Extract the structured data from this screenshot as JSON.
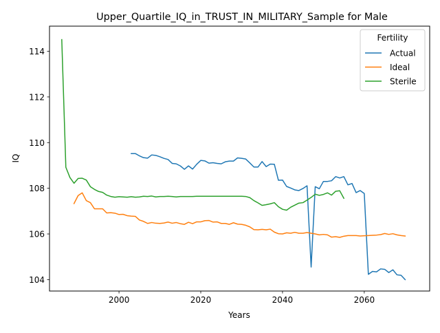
{
  "chart_data": {
    "type": "line",
    "title": "Upper_Quartile_IQ_in_TRUST_IN_MILITARY_Sample for Male",
    "xlabel": "Years",
    "ylabel": "IQ",
    "xlim": [
      1983,
      2076
    ],
    "ylim": [
      103.5,
      115.1
    ],
    "xticks": [
      2000,
      2020,
      2040,
      2060
    ],
    "yticks": [
      104,
      106,
      108,
      110,
      112,
      114
    ],
    "grid": false,
    "legend": {
      "title": "Fertility",
      "placement": "top-right",
      "entries": [
        "Actual",
        "Ideal",
        "Sterile"
      ]
    },
    "series": [
      {
        "name": "Actual",
        "color": "#1f77b4",
        "x": [
          2003,
          2004,
          2005,
          2006,
          2007,
          2008,
          2009,
          2010,
          2011,
          2012,
          2013,
          2014,
          2015,
          2016,
          2017,
          2018,
          2019,
          2020,
          2021,
          2022,
          2023,
          2024,
          2025,
          2026,
          2027,
          2028,
          2029,
          2030,
          2031,
          2032,
          2033,
          2034,
          2035,
          2036,
          2037,
          2038,
          2039,
          2040,
          2041,
          2042,
          2043,
          2044,
          2045,
          2046,
          2047,
          2048,
          2049,
          2050,
          2051,
          2052,
          2053,
          2054,
          2055,
          2056,
          2057,
          2058,
          2059,
          2060,
          2061,
          2062,
          2063,
          2064,
          2065,
          2066,
          2067,
          2068,
          2069,
          2070
        ],
        "y": [
          109.52,
          109.52,
          109.42,
          109.34,
          109.32,
          109.46,
          109.44,
          109.38,
          109.31,
          109.26,
          109.09,
          109.07,
          108.98,
          108.83,
          108.98,
          108.84,
          109.05,
          109.22,
          109.2,
          109.1,
          109.12,
          109.09,
          109.07,
          109.16,
          109.19,
          109.19,
          109.33,
          109.31,
          109.28,
          109.11,
          108.93,
          108.93,
          109.17,
          108.95,
          109.06,
          109.05,
          108.35,
          108.36,
          108.08,
          108.01,
          107.93,
          107.9,
          107.99,
          108.11,
          104.55,
          108.07,
          107.98,
          108.3,
          108.3,
          108.33,
          108.51,
          108.45,
          108.51,
          108.15,
          108.21,
          107.81,
          107.9,
          107.77,
          104.23,
          104.36,
          104.34,
          104.47,
          104.45,
          104.31,
          104.43,
          104.21,
          104.19,
          104.0
        ]
      },
      {
        "name": "Ideal",
        "color": "#ff7f0e",
        "x": [
          1989,
          1990,
          1991,
          1992,
          1993,
          1994,
          1995,
          1996,
          1997,
          1998,
          1999,
          2000,
          2001,
          2002,
          2003,
          2004,
          2005,
          2006,
          2007,
          2008,
          2009,
          2010,
          2011,
          2012,
          2013,
          2014,
          2015,
          2016,
          2017,
          2018,
          2019,
          2020,
          2021,
          2022,
          2023,
          2024,
          2025,
          2026,
          2027,
          2028,
          2029,
          2030,
          2031,
          2032,
          2033,
          2034,
          2035,
          2036,
          2037,
          2038,
          2039,
          2040,
          2041,
          2042,
          2043,
          2044,
          2045,
          2046,
          2047,
          2048,
          2049,
          2050,
          2051,
          2052,
          2053,
          2054,
          2055,
          2056,
          2057,
          2058,
          2059,
          2060,
          2061,
          2062,
          2063,
          2064,
          2065,
          2066,
          2067,
          2068,
          2069,
          2070
        ],
        "y": [
          107.33,
          107.68,
          107.8,
          107.46,
          107.37,
          107.1,
          107.1,
          107.1,
          106.92,
          106.93,
          106.91,
          106.85,
          106.86,
          106.8,
          106.78,
          106.77,
          106.61,
          106.55,
          106.46,
          106.5,
          106.47,
          106.46,
          106.48,
          106.52,
          106.47,
          106.5,
          106.45,
          106.42,
          106.51,
          106.45,
          106.53,
          106.53,
          106.58,
          106.59,
          106.52,
          106.53,
          106.46,
          106.46,
          106.42,
          106.49,
          106.43,
          106.42,
          106.38,
          106.31,
          106.19,
          106.18,
          106.2,
          106.18,
          106.21,
          106.08,
          106.01,
          106.0,
          106.05,
          106.03,
          106.07,
          106.03,
          106.03,
          106.06,
          106.03,
          106.0,
          105.96,
          105.98,
          105.96,
          105.86,
          105.88,
          105.85,
          105.9,
          105.93,
          105.93,
          105.93,
          105.91,
          105.92,
          105.93,
          105.94,
          105.95,
          105.97,
          106.02,
          105.98,
          106.01,
          105.96,
          105.93,
          105.91
        ]
      },
      {
        "name": "Sterile",
        "color": "#2ca02c",
        "x": [
          1986,
          1987,
          1988,
          1989,
          1990,
          1991,
          1992,
          1993,
          1994,
          1995,
          1996,
          1997,
          1998,
          1999,
          2000,
          2001,
          2002,
          2003,
          2004,
          2005,
          2006,
          2007,
          2008,
          2009,
          2010,
          2011,
          2012,
          2013,
          2014,
          2015,
          2016,
          2017,
          2018,
          2019,
          2020,
          2021,
          2022,
          2023,
          2024,
          2025,
          2026,
          2027,
          2028,
          2029,
          2030,
          2031,
          2032,
          2033,
          2034,
          2035,
          2036,
          2037,
          2038,
          2039,
          2040,
          2041,
          2042,
          2043,
          2044,
          2045,
          2046,
          2047,
          2048,
          2049,
          2050,
          2051,
          2052,
          2053,
          2054,
          2055
        ],
        "y": [
          114.51,
          108.92,
          108.47,
          108.22,
          108.43,
          108.44,
          108.36,
          108.07,
          107.95,
          107.86,
          107.82,
          107.7,
          107.64,
          107.61,
          107.63,
          107.62,
          107.61,
          107.63,
          107.61,
          107.62,
          107.65,
          107.64,
          107.66,
          107.62,
          107.64,
          107.64,
          107.65,
          107.64,
          107.62,
          107.64,
          107.64,
          107.64,
          107.64,
          107.65,
          107.65,
          107.65,
          107.65,
          107.65,
          107.65,
          107.65,
          107.65,
          107.65,
          107.65,
          107.65,
          107.65,
          107.64,
          107.59,
          107.46,
          107.36,
          107.25,
          107.28,
          107.32,
          107.37,
          107.19,
          107.08,
          107.04,
          107.17,
          107.26,
          107.35,
          107.37,
          107.48,
          107.6,
          107.74,
          107.69,
          107.73,
          107.8,
          107.7,
          107.87,
          107.89,
          107.56
        ]
      }
    ]
  }
}
